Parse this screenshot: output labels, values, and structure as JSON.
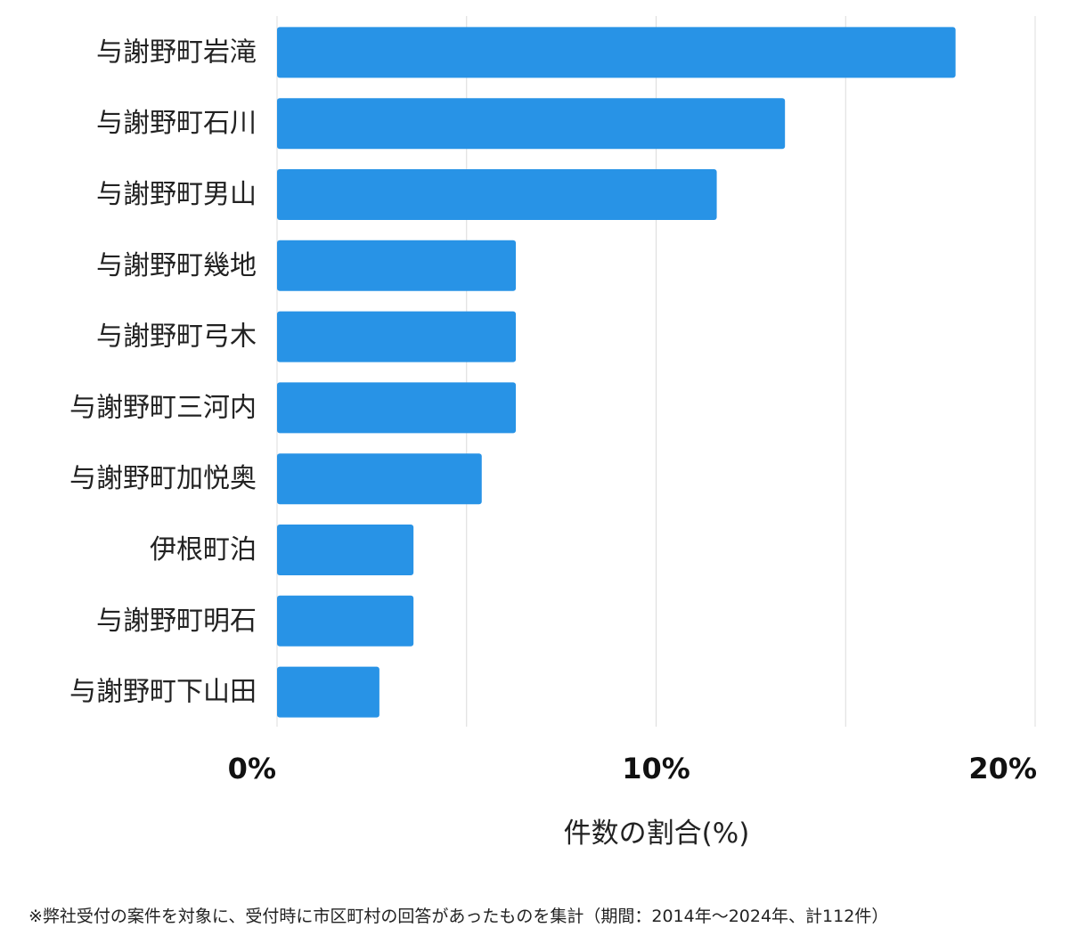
{
  "chart_data": {
    "type": "bar",
    "orientation": "horizontal",
    "categories": [
      "与謝野町岩滝",
      "与謝野町石川",
      "与謝野町男山",
      "与謝野町幾地",
      "与謝野町弓木",
      "与謝野町三河内",
      "与謝野町加悦奥",
      "伊根町泊",
      "与謝野町明石",
      "与謝野町下山田"
    ],
    "values": [
      17.9,
      13.4,
      11.6,
      6.3,
      6.3,
      6.3,
      5.4,
      3.6,
      3.6,
      2.7
    ],
    "xlabel": "件数の割合(%)",
    "ylabel": "",
    "xlim": [
      0,
      20
    ],
    "ticks": [
      {
        "value": 0,
        "label": "0%"
      },
      {
        "value": 10,
        "label": "10%"
      },
      {
        "value": 20,
        "label": "20%"
      }
    ],
    "grid": true,
    "bar_color": "#2893e6",
    "grid_color": "#dcdcdc"
  },
  "footnote": "※弊社受付の案件を対象に、受付時に市区町村の回答があったものを集計（期間：2014年～2024年、計112件）"
}
